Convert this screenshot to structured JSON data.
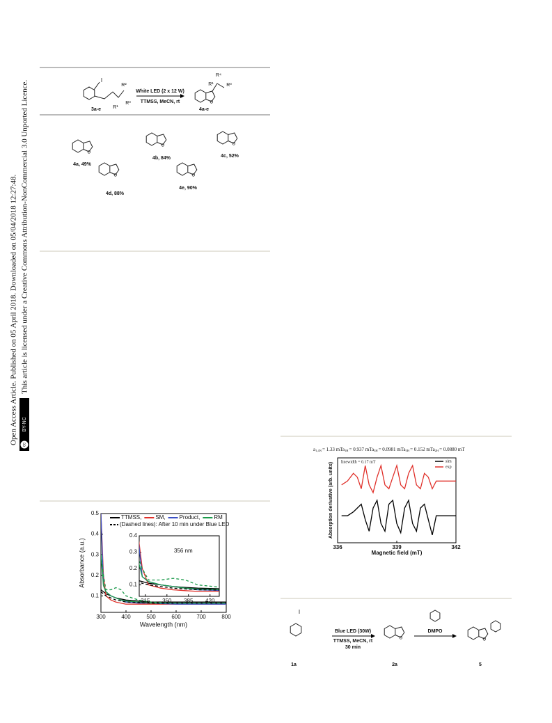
{
  "sidebar": {
    "line1": "Open Access Article. Published on 05 April 2018. Downloaded on 05/04/2018 12:27:48.",
    "line2": "This article is licensed under a Creative Commons Attribution-NonCommercial 3.0 Unported Licence.",
    "badge_cc": "cc",
    "badge": "BY-NC"
  },
  "scheme1": {
    "iodo": "I",
    "reactant": "3a-e",
    "reactant_substituents": [
      "R²",
      "R³",
      "R¹"
    ],
    "conditions_top": "White LED (2 x 12 W)",
    "conditions_bottom": "TTMSS, MeCN, rt",
    "product": "4a-e",
    "product_substituents": [
      "R⁴",
      "R¹",
      "R³"
    ],
    "compounds": [
      "4a, 49%",
      "4b, 84%",
      "4c, 52%",
      "4d, 88%",
      "4e, 90%"
    ]
  },
  "scheme2": {
    "iodo": "I",
    "start": "1a",
    "conditions_top": "Blue LED (30W)",
    "conditions_bottom": "TTMSS,  MeCN, rt",
    "conditions_time": "30 min",
    "intermediate": "2a",
    "trap": "DMPO",
    "product": "5"
  },
  "chart_data": [
    {
      "type": "line",
      "xlabel": "Wavelength (nm)",
      "ylabel": "Absorbance (a.u.)",
      "note": "(Dashed lines): After 10 min under Blue LED",
      "x": [
        300,
        310,
        320,
        340,
        360,
        380,
        400,
        450,
        500,
        600,
        700,
        800
      ],
      "xlim": [
        300,
        800
      ],
      "xticks": [
        300,
        400,
        500,
        600,
        700,
        800
      ],
      "ylim": [
        0.02,
        0.5
      ],
      "yticks": [
        0.1,
        0.2,
        0.3,
        0.4,
        0.5
      ],
      "series": [
        {
          "name": "TTMSS,",
          "color": "#000000",
          "values": [
            0.13,
            0.12,
            0.11,
            0.1,
            0.09,
            0.085,
            0.08,
            0.075,
            0.07,
            0.07,
            0.07,
            0.07
          ]
        },
        {
          "name": "SM,",
          "color": "#e0302a",
          "values": [
            0.5,
            0.2,
            0.1,
            0.08,
            0.07,
            0.065,
            0.06,
            0.06,
            0.06,
            0.06,
            0.06,
            0.06
          ]
        },
        {
          "name": "Product,",
          "color": "#3a4fc4",
          "values": [
            0.5,
            0.15,
            0.12,
            0.1,
            0.09,
            0.08,
            0.07,
            0.065,
            0.065,
            0.06,
            0.06,
            0.06
          ]
        },
        {
          "name": "RM",
          "color": "#1a9a4a",
          "values": [
            0.3,
            0.15,
            0.12,
            0.1,
            0.09,
            0.08,
            0.075,
            0.07,
            0.065,
            0.065,
            0.065,
            0.065
          ]
        },
        {
          "color": "#000000",
          "dashed": true,
          "values": [
            0.12,
            0.11,
            0.1,
            0.09,
            0.08,
            0.075,
            0.07,
            0.068,
            0.065,
            0.065,
            0.065,
            0.065
          ]
        },
        {
          "color": "#1a9a4a",
          "dashed": true,
          "values": [
            0.3,
            0.2,
            0.13,
            0.13,
            0.14,
            0.13,
            0.1,
            0.08,
            0.07,
            0.065,
            0.065,
            0.065
          ]
        }
      ],
      "inset": {
        "xlim": [
          305,
          435
        ],
        "xticks": [
          315,
          350,
          385,
          420
        ],
        "ylim": [
          0.03,
          0.4
        ],
        "yticks": [
          0.1,
          0.2,
          0.3,
          0.4
        ],
        "annotation": "356 nm"
      }
    },
    {
      "type": "line",
      "xlabel": "Magnetic field (mT)",
      "ylabel": "Absorption derivative (arb. units)",
      "annotation": [
        {
          "sub": "1,4N",
          "text": "= 1.33 mT"
        },
        {
          "sub": "1H",
          "text": "= 0.937 mT"
        },
        {
          "sub": "3H",
          "text": "= 0.0981 mT"
        },
        {
          "sub": "3H",
          "text": "= 0.152 mT"
        },
        {
          "sub": "2H",
          "text": "= 0.0880 mT"
        }
      ],
      "annotation_symbol": "a",
      "linewidth": "linewidth = 0.17 mT",
      "x": [
        336.2,
        336.5,
        336.8,
        337.0,
        337.2,
        337.4,
        337.6,
        337.8,
        338.0,
        338.2,
        338.4,
        338.6,
        338.8,
        339.0,
        339.2,
        339.4,
        339.6,
        339.8,
        340.0,
        340.2,
        340.4,
        340.6,
        340.8,
        341.0,
        341.5,
        342.0
      ],
      "xlim": [
        336,
        342
      ],
      "xticks": [
        336,
        339,
        342
      ],
      "ylim": [
        -5.5,
        5.5
      ],
      "series": [
        {
          "name": "sim",
          "color": "#000000",
          "values": [
            -2,
            -2,
            -1.5,
            -1,
            -0.5,
            -2.5,
            -4,
            -1,
            0,
            -3,
            -4,
            -0.5,
            0,
            -3,
            -4.2,
            -1,
            0,
            -3,
            -4,
            -1,
            -0.5,
            -2.5,
            -4.5,
            -2,
            -2,
            -2
          ]
        },
        {
          "name": "exp",
          "color": "#e0302a",
          "values": [
            2,
            2.5,
            3.5,
            3,
            1.5,
            4.5,
            2,
            1,
            3,
            4.5,
            2,
            1.5,
            3,
            4.5,
            2,
            1.5,
            3.5,
            4.5,
            2,
            1.5,
            3.5,
            3,
            1.5,
            2.5,
            2.5,
            2.5
          ]
        }
      ]
    }
  ]
}
